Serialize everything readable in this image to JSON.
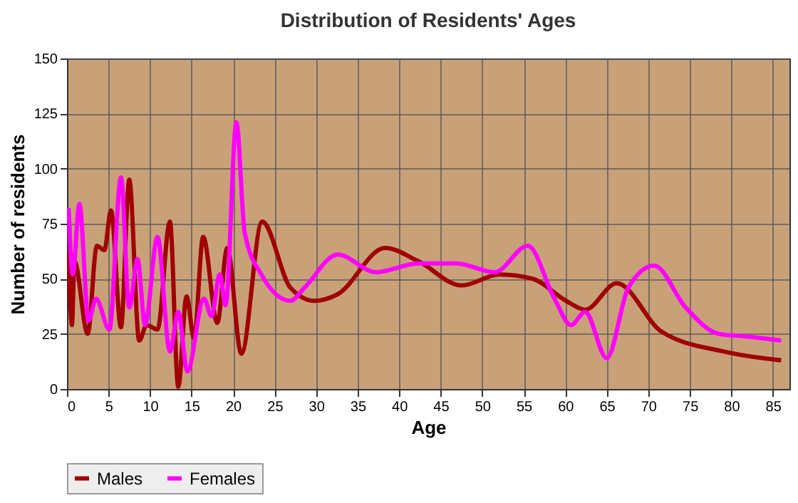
{
  "chart_data": {
    "type": "line",
    "title": "Distribution of Residents' Ages",
    "xlabel": "Age",
    "ylabel": "Number of residents",
    "xlim": [
      0,
      87
    ],
    "xticks": [
      0,
      5,
      10,
      15,
      20,
      25,
      30,
      35,
      40,
      45,
      50,
      55,
      60,
      65,
      70,
      75,
      80,
      85
    ],
    "ylim": [
      0,
      150
    ],
    "yticks": [
      0,
      25,
      50,
      75,
      100,
      125,
      150
    ],
    "grid": true,
    "legend": "bottom",
    "marker": "none",
    "line_style": "solid",
    "series": [
      {
        "name": "Males",
        "color": "#a00000",
        "x": [
          0.2,
          0.6,
          0.9,
          2.5,
          3.6,
          4.5,
          5.3,
          6.5,
          7.5,
          8.7,
          9.6,
          10.9,
          12.4,
          13.4,
          14.4,
          15.3,
          16.4,
          18.1,
          19.3,
          21,
          23.5,
          26.9,
          29.8,
          32.6,
          38.3,
          42.3,
          47.5,
          52.1,
          56.1,
          60.1,
          62.4,
          66.2,
          71.6,
          79.1,
          86
        ],
        "values": [
          63,
          29,
          58,
          25,
          65,
          63,
          81,
          28,
          95,
          22,
          29,
          27,
          76,
          1,
          42,
          23,
          69,
          30,
          64,
          16,
          76,
          46,
          40,
          43,
          64,
          58,
          47,
          52,
          50,
          40,
          36,
          48,
          26,
          17,
          13
        ]
      },
      {
        "name": "Females",
        "color": "#ff00ff",
        "x": [
          0.2,
          0.7,
          1.5,
          2.6,
          3.5,
          5.1,
          6.5,
          7.5,
          8.5,
          9.4,
          10.9,
          12.4,
          13.4,
          14.5,
          16.5,
          17.4,
          18.4,
          19.1,
          20.4,
          21.4,
          23.4,
          26.9,
          28.6,
          32.6,
          37.2,
          42.3,
          46.9,
          51.5,
          55.5,
          58.7,
          60.7,
          62.4,
          65,
          67.6,
          70.7,
          74.5,
          78.5,
          81.4,
          86
        ],
        "values": [
          82,
          52,
          84,
          31,
          41,
          27,
          96,
          37,
          59,
          29,
          69,
          17,
          35,
          8,
          41,
          33,
          52,
          38,
          121,
          71,
          52,
          40,
          46,
          61,
          53,
          57,
          57,
          53,
          65,
          41,
          29,
          35,
          14,
          46,
          56,
          37,
          25,
          24,
          22
        ]
      }
    ]
  }
}
